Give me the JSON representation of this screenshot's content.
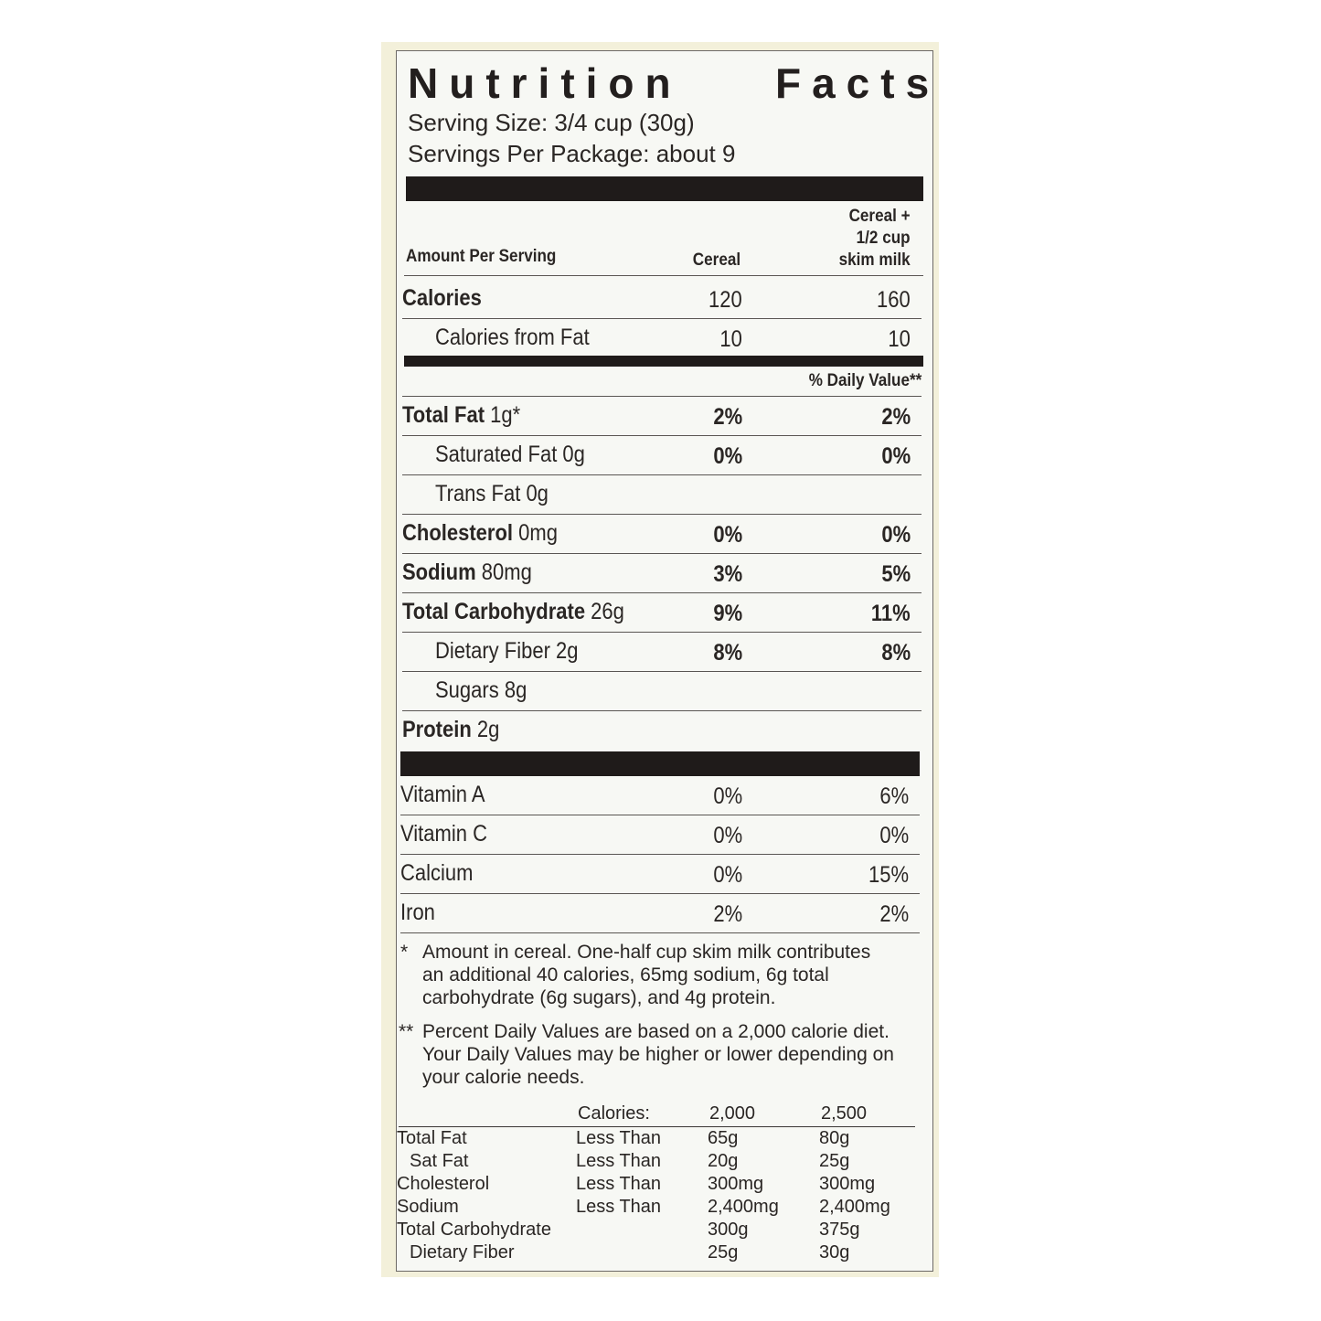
{
  "title": {
    "word1": "Nutrition",
    "word2": "Facts"
  },
  "serving_size": "Serving Size: 3/4 cup (30g)",
  "servings_per_package": "Servings Per Package: about 9",
  "header": {
    "amount_per_serving": "Amount Per Serving",
    "col1": "Cereal",
    "col2_line1": "Cereal +",
    "col2_line2": "1/2 cup",
    "col2_line3": "skim milk"
  },
  "calories": {
    "label": "Calories",
    "cereal": "120",
    "with_milk": "160"
  },
  "calories_from_fat": {
    "label": "Calories from Fat",
    "cereal": "10",
    "with_milk": "10"
  },
  "daily_value_header": "% Daily Value**",
  "nutrients": [
    {
      "name": "Total Fat",
      "amount": "1g*",
      "cereal": "2%",
      "with_milk": "2%",
      "bold": true,
      "indent": false
    },
    {
      "name": "Saturated Fat",
      "amount": "0g",
      "cereal": "0%",
      "with_milk": "0%",
      "bold": false,
      "indent": true
    },
    {
      "name": "Trans Fat",
      "amount": "0g",
      "cereal": "",
      "with_milk": "",
      "bold": false,
      "indent": true
    },
    {
      "name": "Cholesterol",
      "amount": "0mg",
      "cereal": "0%",
      "with_milk": "0%",
      "bold": true,
      "indent": false
    },
    {
      "name": "Sodium",
      "amount": "80mg",
      "cereal": "3%",
      "with_milk": "5%",
      "bold": true,
      "indent": false
    },
    {
      "name": "Total Carbohydrate",
      "amount": "26g",
      "cereal": "9%",
      "with_milk": "11%",
      "bold": true,
      "indent": false
    },
    {
      "name": "Dietary Fiber",
      "amount": "2g",
      "cereal": "8%",
      "with_milk": "8%",
      "bold": false,
      "indent": true
    },
    {
      "name": "Sugars",
      "amount": "8g",
      "cereal": "",
      "with_milk": "",
      "bold": false,
      "indent": true
    },
    {
      "name": "Protein",
      "amount": "2g",
      "cereal": "",
      "with_milk": "",
      "bold": true,
      "indent": false
    }
  ],
  "vitamins": [
    {
      "name": "Vitamin A",
      "cereal": "0%",
      "with_milk": "6%"
    },
    {
      "name": "Vitamin C",
      "cereal": "0%",
      "with_milk": "0%"
    },
    {
      "name": "Calcium",
      "cereal": "0%",
      "with_milk": "15%"
    },
    {
      "name": "Iron",
      "cereal": "2%",
      "with_milk": "2%"
    }
  ],
  "footnote1": {
    "mark": "*",
    "lines": [
      "Amount in cereal. One-half cup skim milk contributes",
      "an additional 40 calories, 65mg sodium, 6g total",
      "carbohydrate (6g sugars), and 4g protein."
    ]
  },
  "footnote2": {
    "mark": "**",
    "lines": [
      "Percent Daily Values are based on a 2,000 calorie diet.",
      "Your Daily Values may be higher or lower depending on",
      "your calorie needs."
    ]
  },
  "dv_table": {
    "header": {
      "label": "Calories:",
      "c1": "2,000",
      "c2": "2,500"
    },
    "rows": [
      {
        "name": "Total Fat",
        "qual": "Less Than",
        "c1": "65g",
        "c2": "80g"
      },
      {
        "name": "Sat Fat",
        "qual": "Less Than",
        "c1": "20g",
        "c2": "25g"
      },
      {
        "name": "Cholesterol",
        "qual": "Less Than",
        "c1": "300mg",
        "c2": "300mg"
      },
      {
        "name": "Sodium",
        "qual": "Less Than",
        "c1": "2,400mg",
        "c2": "2,400mg"
      },
      {
        "name": "Total Carbohydrate",
        "qual": "",
        "c1": "300g",
        "c2": "375g"
      },
      {
        "name": "Dietary Fiber",
        "qual": "",
        "c1": "25g",
        "c2": "30g"
      }
    ]
  }
}
